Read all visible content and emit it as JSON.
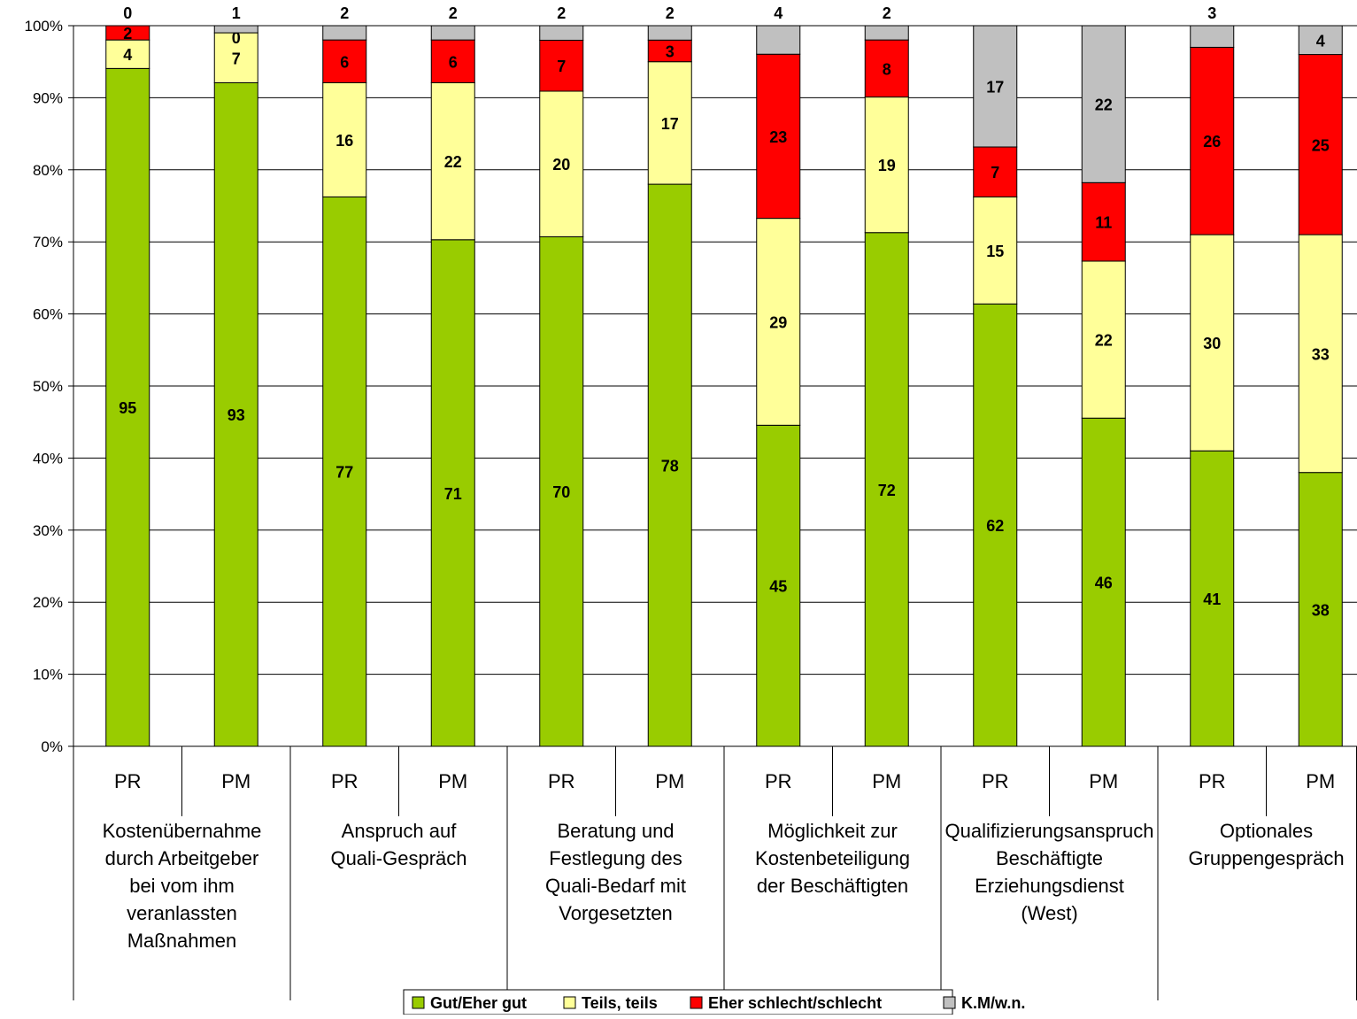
{
  "chart_data": {
    "type": "bar",
    "stacked": "percent",
    "title": "",
    "xlabel": "",
    "ylabel": "",
    "ylim": [
      0,
      100
    ],
    "yticks": [
      "0%",
      "10%",
      "20%",
      "30%",
      "40%",
      "50%",
      "60%",
      "70%",
      "80%",
      "90%",
      "100%"
    ],
    "grid": "horizontal",
    "legend_position": "bottom",
    "groups": [
      {
        "label": [
          "Kostenübernahme",
          "durch Arbeitgeber",
          "bei vom ihm",
          "veranlassten",
          "Maßnahmen"
        ],
        "bars": [
          "PR",
          "PM"
        ]
      },
      {
        "label": [
          "Anspruch auf",
          "Quali-Gespräch"
        ],
        "bars": [
          "PR",
          "PM"
        ]
      },
      {
        "label": [
          "Beratung und",
          "Festlegung des",
          "Quali-Bedarf mit",
          "Vorgesetzten"
        ],
        "bars": [
          "PR",
          "PM"
        ]
      },
      {
        "label": [
          "Möglichkeit zur",
          "Kostenbeteiligung",
          "der Beschäftigten"
        ],
        "bars": [
          "PR",
          "PM"
        ]
      },
      {
        "label": [
          "Qualifizierungsanspruch",
          "Beschäftigte",
          "Erziehungsdienst",
          "(West)"
        ],
        "bars": [
          "PR",
          "PM"
        ]
      },
      {
        "label": [
          "Optionales",
          "Gruppengespräch"
        ],
        "bars": [
          "PR",
          "PM"
        ]
      }
    ],
    "series": [
      {
        "name": "Gut/Eher gut",
        "color": "#99cc00",
        "values": [
          95,
          93,
          77,
          71,
          70,
          78,
          45,
          72,
          62,
          46,
          41,
          38
        ],
        "labels": [
          "95",
          "93",
          "77",
          "71",
          "70",
          "78",
          "45",
          "72",
          "62",
          "46",
          "41",
          "38"
        ]
      },
      {
        "name": "Teils, teils",
        "color": "#ffff99",
        "values": [
          4,
          7,
          16,
          22,
          20,
          17,
          29,
          19,
          15,
          22,
          30,
          33
        ],
        "labels": [
          "4",
          "7",
          "16",
          "22",
          "20",
          "17",
          "29",
          "19",
          "15",
          "22",
          "30",
          "33"
        ]
      },
      {
        "name": "Eher schlecht/schlecht",
        "color": "#ff0000",
        "values": [
          2,
          0,
          6,
          6,
          7,
          3,
          23,
          8,
          7,
          11,
          26,
          25
        ],
        "labels": [
          "2",
          "0",
          "6",
          "6",
          "7",
          "3",
          "23",
          "8",
          "7",
          "11",
          "26",
          "25"
        ]
      },
      {
        "name": "K.M/w.n.",
        "color": "#c0c0c0",
        "values": [
          0,
          1,
          2,
          2,
          2,
          2,
          4,
          2,
          17,
          22,
          3,
          4
        ],
        "labels": [
          "0",
          "1",
          "2",
          "2",
          "2",
          "2",
          "4",
          "2",
          "17",
          "22",
          "3",
          "4"
        ]
      }
    ]
  }
}
